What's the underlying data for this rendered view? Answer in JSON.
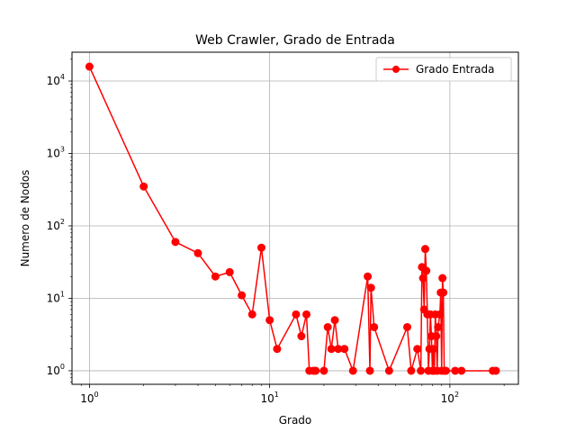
{
  "chart_data": {
    "type": "line",
    "title": "Web Crawler, Grado de Entrada",
    "xlabel": "Grado",
    "ylabel": "Numero de Nodos",
    "xscale": "log",
    "yscale": "log",
    "xlim": [
      0.8,
      240
    ],
    "ylim": [
      0.65,
      25000
    ],
    "grid": true,
    "legend_position": "top-right",
    "x_ticks": [
      {
        "value": 1,
        "base": "10",
        "exp": "0"
      },
      {
        "value": 10,
        "base": "10",
        "exp": "1"
      },
      {
        "value": 100,
        "base": "10",
        "exp": "2"
      }
    ],
    "y_ticks": [
      {
        "value": 1,
        "base": "10",
        "exp": "0"
      },
      {
        "value": 10,
        "base": "10",
        "exp": "1"
      },
      {
        "value": 100,
        "base": "10",
        "exp": "2"
      },
      {
        "value": 1000,
        "base": "10",
        "exp": "3"
      },
      {
        "value": 10000,
        "base": "10",
        "exp": "4"
      }
    ],
    "series": [
      {
        "name": "Grado Entrada",
        "color": "#ff0000",
        "marker": "circle",
        "points": [
          [
            1,
            15800
          ],
          [
            2,
            350
          ],
          [
            3,
            60
          ],
          [
            4,
            42
          ],
          [
            5,
            20
          ],
          [
            6,
            23
          ],
          [
            7,
            11
          ],
          [
            8,
            6
          ],
          [
            9,
            50
          ],
          [
            10,
            5
          ],
          [
            11,
            2
          ],
          [
            14,
            6
          ],
          [
            15,
            3
          ],
          [
            16,
            6
          ],
          [
            16.6,
            1
          ],
          [
            17.5,
            1
          ],
          [
            18,
            1
          ],
          [
            20,
            1
          ],
          [
            21,
            4
          ],
          [
            22,
            2
          ],
          [
            23,
            5
          ],
          [
            24,
            2
          ],
          [
            26,
            2
          ],
          [
            29,
            1
          ],
          [
            35,
            20
          ],
          [
            36,
            1
          ],
          [
            36.5,
            14
          ],
          [
            38,
            4
          ],
          [
            46,
            1
          ],
          [
            58,
            4
          ],
          [
            61,
            1
          ],
          [
            66,
            2
          ],
          [
            69,
            1
          ],
          [
            70,
            27
          ],
          [
            71,
            19
          ],
          [
            72,
            7
          ],
          [
            73,
            48
          ],
          [
            74,
            24
          ],
          [
            75,
            6
          ],
          [
            76,
            1
          ],
          [
            77,
            2
          ],
          [
            78,
            6
          ],
          [
            79,
            3
          ],
          [
            80,
            1
          ],
          [
            81,
            2
          ],
          [
            82,
            1
          ],
          [
            83,
            6
          ],
          [
            84,
            3
          ],
          [
            85,
            1
          ],
          [
            86,
            4
          ],
          [
            88,
            6
          ],
          [
            89,
            12
          ],
          [
            90,
            1
          ],
          [
            91,
            19
          ],
          [
            92,
            12
          ],
          [
            93,
            1
          ],
          [
            95,
            1
          ],
          [
            107,
            1
          ],
          [
            116,
            1
          ],
          [
            173,
            1
          ],
          [
            180,
            1
          ]
        ]
      }
    ]
  }
}
